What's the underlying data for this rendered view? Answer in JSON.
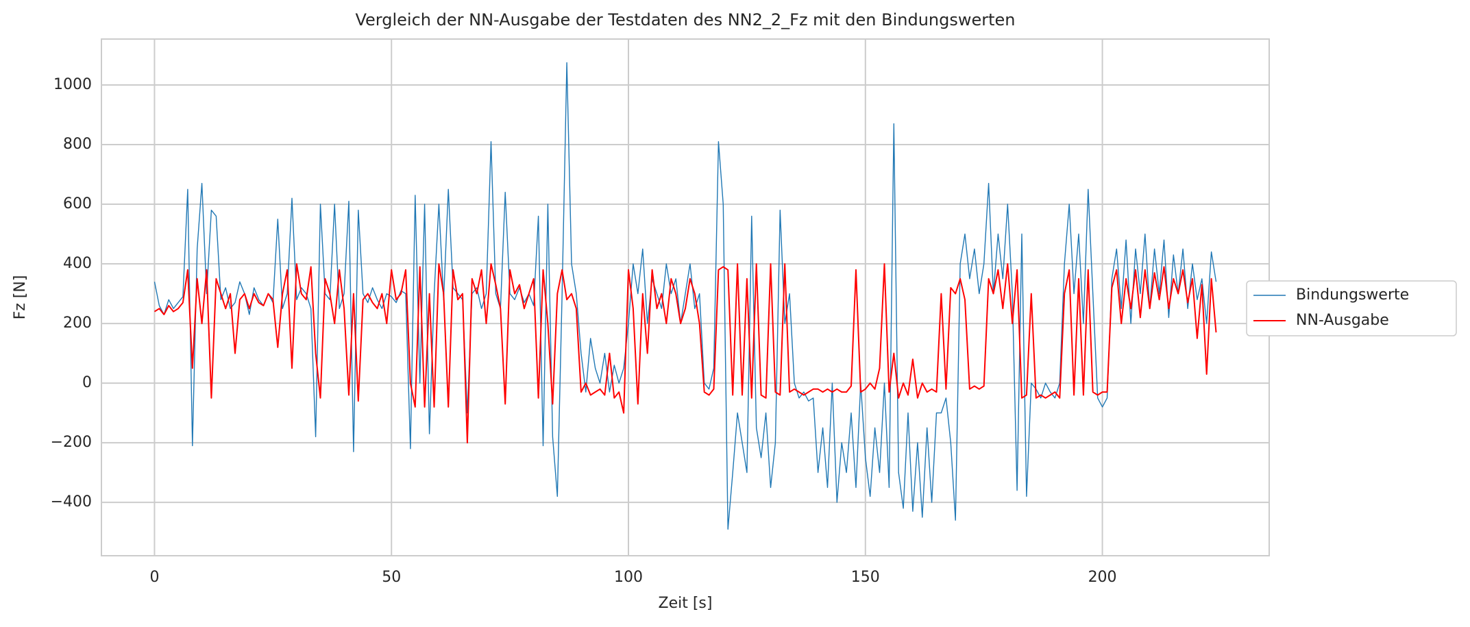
{
  "chart_data": {
    "type": "line",
    "title": "Vergleich der NN-Ausgabe der Testdaten des NN2_2_Fz mit den Bindungswerten",
    "xlabel": "Zeit [s]",
    "ylabel": "Fz [N]",
    "xlim": [
      -11.2,
      235.2
    ],
    "ylim": [
      -579,
      1154
    ],
    "xticks": [
      0,
      50,
      100,
      150,
      200
    ],
    "yticks": [
      {
        "value": -400,
        "label": "−400"
      },
      {
        "value": -200,
        "label": "−200"
      },
      0,
      200,
      400,
      600,
      800,
      1000
    ],
    "grid": true,
    "legend": "right",
    "x": [
      0,
      1,
      2,
      3,
      4,
      5,
      6,
      7,
      8,
      9,
      10,
      11,
      12,
      13,
      14,
      15,
      16,
      17,
      18,
      19,
      20,
      21,
      22,
      23,
      24,
      25,
      26,
      27,
      28,
      29,
      30,
      31,
      32,
      33,
      34,
      35,
      36,
      37,
      38,
      39,
      40,
      41,
      42,
      43,
      44,
      45,
      46,
      47,
      48,
      49,
      50,
      51,
      52,
      53,
      54,
      55,
      56,
      57,
      58,
      59,
      60,
      61,
      62,
      63,
      64,
      65,
      66,
      67,
      68,
      69,
      70,
      71,
      72,
      73,
      74,
      75,
      76,
      77,
      78,
      79,
      80,
      81,
      82,
      83,
      84,
      85,
      86,
      87,
      88,
      89,
      90,
      91,
      92,
      93,
      94,
      95,
      96,
      97,
      98,
      99,
      100,
      101,
      102,
      103,
      104,
      105,
      106,
      107,
      108,
      109,
      110,
      111,
      112,
      113,
      114,
      115,
      116,
      117,
      118,
      119,
      120,
      121,
      122,
      123,
      124,
      125,
      126,
      127,
      128,
      129,
      130,
      131,
      132,
      133,
      134,
      135,
      136,
      137,
      138,
      139,
      140,
      141,
      142,
      143,
      144,
      145,
      146,
      147,
      148,
      149,
      150,
      151,
      152,
      153,
      154,
      155,
      156,
      157,
      158,
      159,
      160,
      161,
      162,
      163,
      164,
      165,
      166,
      167,
      168,
      169,
      170,
      171,
      172,
      173,
      174,
      175,
      176,
      177,
      178,
      179,
      180,
      181,
      182,
      183,
      184,
      185,
      186,
      187,
      188,
      189,
      190,
      191,
      192,
      193,
      194,
      195,
      196,
      197,
      198,
      199,
      200,
      201,
      202,
      203,
      204,
      205,
      206,
      207,
      208,
      209,
      210,
      211,
      212,
      213,
      214,
      215,
      216,
      217,
      218,
      219,
      220,
      221,
      222,
      223,
      224
    ],
    "series": [
      {
        "name": "Bindungswerte",
        "color": "#1f77b4",
        "width": 1.4,
        "values": [
          340,
          260,
          230,
          280,
          250,
          270,
          290,
          650,
          -210,
          450,
          670,
          300,
          580,
          560,
          280,
          320,
          250,
          270,
          340,
          300,
          230,
          320,
          280,
          260,
          300,
          270,
          550,
          250,
          300,
          620,
          280,
          320,
          300,
          250,
          -180,
          600,
          300,
          280,
          600,
          250,
          300,
          610,
          -230,
          580,
          300,
          270,
          320,
          280,
          250,
          300,
          290,
          270,
          310,
          300,
          -220,
          630,
          0,
          600,
          -170,
          300,
          600,
          280,
          650,
          320,
          300,
          280,
          -100,
          300,
          320,
          250,
          300,
          810,
          300,
          250,
          640,
          300,
          280,
          320,
          270,
          300,
          260,
          560,
          -210,
          600,
          -180,
          -380,
          300,
          1075,
          400,
          300,
          100,
          -30,
          150,
          50,
          0,
          100,
          -30,
          60,
          0,
          50,
          200,
          400,
          300,
          450,
          200,
          350,
          300,
          250,
          400,
          300,
          350,
          200,
          300,
          400,
          250,
          300,
          0,
          -20,
          50,
          810,
          600,
          -490,
          -300,
          -100,
          -200,
          -300,
          560,
          -150,
          -250,
          -100,
          -350,
          -200,
          580,
          200,
          300,
          0,
          -50,
          -30,
          -60,
          -50,
          -300,
          -150,
          -350,
          0,
          -400,
          -200,
          -300,
          -100,
          -350,
          0,
          -250,
          -380,
          -150,
          -300,
          0,
          -350,
          870,
          -300,
          -420,
          -100,
          -430,
          -200,
          -450,
          -150,
          -400,
          -100,
          -100,
          -50,
          -200,
          -460,
          400,
          500,
          350,
          450,
          300,
          400,
          670,
          300,
          500,
          350,
          600,
          300,
          -360,
          500,
          -380,
          0,
          -20,
          -50,
          0,
          -30,
          -50,
          0,
          400,
          600,
          300,
          500,
          200,
          650,
          300,
          -50,
          -80,
          -50,
          350,
          450,
          250,
          480,
          200,
          450,
          300,
          500,
          250,
          450,
          300,
          480,
          220,
          430,
          300,
          450,
          250,
          400,
          280,
          350,
          200,
          440,
          340
        ]
      },
      {
        "name": "NN-Ausgabe",
        "color": "#ff0000",
        "width": 2,
        "values": [
          240,
          250,
          230,
          260,
          240,
          250,
          270,
          380,
          50,
          350,
          200,
          380,
          -50,
          350,
          300,
          250,
          300,
          100,
          280,
          300,
          250,
          300,
          270,
          260,
          300,
          280,
          120,
          300,
          380,
          50,
          400,
          300,
          280,
          390,
          100,
          -50,
          350,
          300,
          200,
          380,
          250,
          -40,
          300,
          -60,
          280,
          300,
          270,
          250,
          300,
          200,
          380,
          280,
          300,
          380,
          0,
          -80,
          390,
          -80,
          300,
          -80,
          400,
          300,
          -80,
          380,
          280,
          300,
          -200,
          350,
          300,
          380,
          200,
          400,
          330,
          250,
          -70,
          380,
          300,
          330,
          250,
          300,
          350,
          -50,
          380,
          200,
          -70,
          300,
          380,
          280,
          300,
          250,
          -30,
          0,
          -40,
          -30,
          -20,
          -40,
          100,
          -50,
          -30,
          -100,
          380,
          250,
          -70,
          300,
          100,
          380,
          250,
          300,
          200,
          350,
          300,
          200,
          250,
          350,
          300,
          200,
          -30,
          -40,
          -20,
          380,
          390,
          380,
          -40,
          400,
          -40,
          350,
          -50,
          400,
          -40,
          -50,
          400,
          -30,
          -40,
          400,
          -30,
          -20,
          -30,
          -40,
          -30,
          -20,
          -20,
          -30,
          -20,
          -30,
          -20,
          -30,
          -30,
          -10,
          380,
          -30,
          -20,
          0,
          -20,
          50,
          400,
          -30,
          100,
          -50,
          0,
          -40,
          80,
          -50,
          0,
          -30,
          -20,
          -30,
          300,
          -20,
          320,
          300,
          350,
          280,
          -20,
          -10,
          -20,
          -10,
          350,
          300,
          380,
          250,
          400,
          200,
          380,
          -50,
          -40,
          300,
          -50,
          -40,
          -50,
          -40,
          -30,
          -50,
          300,
          380,
          -40,
          350,
          -40,
          380,
          -30,
          -40,
          -30,
          -30,
          320,
          380,
          200,
          350,
          250,
          380,
          220,
          380,
          250,
          370,
          280,
          390,
          250,
          350,
          300,
          380,
          270,
          350,
          150,
          330,
          30,
          350,
          170
        ]
      }
    ]
  }
}
